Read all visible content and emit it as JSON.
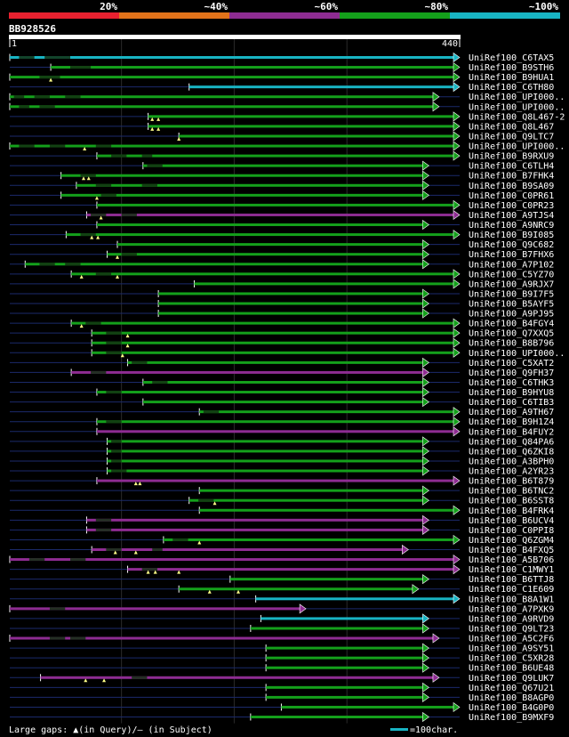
{
  "chart_data": {
    "type": "alignment-overview",
    "query_id": "BB928526",
    "query_length": 440,
    "ruler": {
      "start_label": "1",
      "end_label": "440"
    },
    "identity_legend": [
      {
        "label": "20%",
        "color": "#e8212f"
      },
      {
        "label": "~40%",
        "color": "#e2731a"
      },
      {
        "label": "~60%",
        "color": "#8e2c92"
      },
      {
        "label": "~80%",
        "color": "#14a01b"
      },
      {
        "label": "~100%",
        "color": "#18b4c3"
      }
    ],
    "gridlines_at": [
      110,
      220,
      330
    ],
    "hits": [
      {
        "name": "UniRef100_C6TAX5",
        "start": 1,
        "end": 440,
        "color": "#18b4c3",
        "gaps": [
          [
            10,
            25
          ],
          [
            35,
            60
          ]
        ],
        "marks": []
      },
      {
        "name": "UniRef100_B9STH6",
        "start": 41,
        "end": 440,
        "color": "#14a01b",
        "gaps": [
          [
            60,
            80
          ]
        ],
        "marks": []
      },
      {
        "name": "UniRef100_B9HUA1",
        "start": 1,
        "end": 440,
        "color": "#14a01b",
        "gaps": [
          [
            30,
            50
          ]
        ],
        "marks": [
          41
        ]
      },
      {
        "name": "UniRef100_C6TH80",
        "start": 176,
        "end": 440,
        "color": "#18b4c3",
        "gaps": [],
        "marks": []
      },
      {
        "name": "UniRef100_UPI000..",
        "start": 1,
        "end": 420,
        "color": "#14a01b",
        "gaps": [
          [
            5,
            15
          ],
          [
            25,
            40
          ],
          [
            55,
            70
          ]
        ],
        "marks": []
      },
      {
        "name": "UniRef100_UPI000..",
        "start": 1,
        "end": 420,
        "color": "#14a01b",
        "gaps": [
          [
            10,
            20
          ],
          [
            30,
            45
          ]
        ],
        "marks": []
      },
      {
        "name": "UniRef100_Q8L467-2",
        "start": 136,
        "end": 440,
        "color": "#14a01b",
        "gaps": [],
        "marks": [
          140,
          146
        ]
      },
      {
        "name": "UniRef100_Q8L467",
        "start": 136,
        "end": 440,
        "color": "#14a01b",
        "gaps": [],
        "marks": [
          140,
          146
        ]
      },
      {
        "name": "UniRef100_Q9LTC7",
        "start": 166,
        "end": 440,
        "color": "#14a01b",
        "gaps": [],
        "marks": [
          166
        ]
      },
      {
        "name": "UniRef100_UPI000..",
        "start": 1,
        "end": 440,
        "color": "#14a01b",
        "gaps": [
          [
            10,
            25
          ],
          [
            40,
            55
          ],
          [
            85,
            100
          ]
        ],
        "marks": [
          74
        ]
      },
      {
        "name": "UniRef100_B9RXU9",
        "start": 86,
        "end": 440,
        "color": "#14a01b",
        "gaps": [
          [
            100,
            115
          ],
          [
            130,
            140
          ]
        ],
        "marks": []
      },
      {
        "name": "UniRef100_C6TLH4",
        "start": 131,
        "end": 410,
        "color": "#14a01b",
        "gaps": [
          [
            135,
            150
          ]
        ],
        "marks": []
      },
      {
        "name": "UniRef100_B7FHK4",
        "start": 51,
        "end": 410,
        "color": "#14a01b",
        "gaps": [
          [
            70,
            85
          ]
        ],
        "marks": [
          73,
          78
        ]
      },
      {
        "name": "UniRef100_B9SA09",
        "start": 66,
        "end": 410,
        "color": "#14a01b",
        "gaps": [
          [
            85,
            100
          ],
          [
            130,
            145
          ]
        ],
        "marks": []
      },
      {
        "name": "UniRef100_C0PR61",
        "start": 51,
        "end": 410,
        "color": "#14a01b",
        "gaps": [
          [
            90,
            105
          ]
        ],
        "marks": [
          86
        ]
      },
      {
        "name": "UniRef100_C0PR23",
        "start": 86,
        "end": 440,
        "color": "#14a01b",
        "gaps": [],
        "marks": []
      },
      {
        "name": "UniRef100_A9TJS4",
        "start": 76,
        "end": 440,
        "color": "#8e2c92",
        "gaps": [
          [
            80,
            95
          ],
          [
            110,
            125
          ]
        ],
        "marks": [
          90
        ]
      },
      {
        "name": "UniRef100_A9NRC9",
        "start": 86,
        "end": 410,
        "color": "#14a01b",
        "gaps": [],
        "marks": []
      },
      {
        "name": "UniRef100_B9I085",
        "start": 56,
        "end": 440,
        "color": "#14a01b",
        "gaps": [
          [
            70,
            85
          ]
        ],
        "marks": [
          81,
          87
        ]
      },
      {
        "name": "UniRef100_Q9C682",
        "start": 106,
        "end": 410,
        "color": "#14a01b",
        "gaps": [],
        "marks": []
      },
      {
        "name": "UniRef100_B7FHX6",
        "start": 96,
        "end": 410,
        "color": "#14a01b",
        "gaps": [
          [
            110,
            125
          ]
        ],
        "marks": [
          106
        ]
      },
      {
        "name": "UniRef100_A7P102",
        "start": 16,
        "end": 410,
        "color": "#14a01b",
        "gaps": [
          [
            30,
            45
          ],
          [
            55,
            70
          ]
        ],
        "marks": []
      },
      {
        "name": "UniRef100_C5YZ70",
        "start": 61,
        "end": 440,
        "color": "#14a01b",
        "gaps": [
          [
            85,
            100
          ]
        ],
        "marks": [
          71,
          106
        ]
      },
      {
        "name": "UniRef100_A9RJX7",
        "start": 181,
        "end": 440,
        "color": "#14a01b",
        "gaps": [],
        "marks": []
      },
      {
        "name": "UniRef100_B9I7F5",
        "start": 146,
        "end": 410,
        "color": "#14a01b",
        "gaps": [],
        "marks": []
      },
      {
        "name": "UniRef100_B5AYF5",
        "start": 146,
        "end": 410,
        "color": "#14a01b",
        "gaps": [],
        "marks": []
      },
      {
        "name": "UniRef100_A9PJ95",
        "start": 146,
        "end": 410,
        "color": "#14a01b",
        "gaps": [],
        "marks": []
      },
      {
        "name": "UniRef100_B4FGY4",
        "start": 61,
        "end": 440,
        "color": "#14a01b",
        "gaps": [
          [
            75,
            90
          ]
        ],
        "marks": [
          71
        ]
      },
      {
        "name": "UniRef100_Q7XXQ5",
        "start": 81,
        "end": 440,
        "color": "#14a01b",
        "gaps": [
          [
            95,
            110
          ]
        ],
        "marks": [
          116
        ]
      },
      {
        "name": "UniRef100_B8B796",
        "start": 81,
        "end": 440,
        "color": "#14a01b",
        "gaps": [
          [
            95,
            110
          ]
        ],
        "marks": [
          116
        ]
      },
      {
        "name": "UniRef100_UPI000..",
        "start": 81,
        "end": 440,
        "color": "#14a01b",
        "gaps": [
          [
            95,
            110
          ]
        ],
        "marks": [
          111
        ]
      },
      {
        "name": "UniRef100_C5XAT2",
        "start": 116,
        "end": 410,
        "color": "#14a01b",
        "gaps": [
          [
            120,
            135
          ]
        ],
        "marks": []
      },
      {
        "name": "UniRef100_Q9FH37",
        "start": 61,
        "end": 410,
        "color": "#8e2c92",
        "gaps": [
          [
            80,
            95
          ]
        ],
        "marks": []
      },
      {
        "name": "UniRef100_C6THK3",
        "start": 131,
        "end": 410,
        "color": "#14a01b",
        "gaps": [
          [
            140,
            155
          ]
        ],
        "marks": []
      },
      {
        "name": "UniRef100_B9HYU8",
        "start": 86,
        "end": 410,
        "color": "#14a01b",
        "gaps": [
          [
            95,
            110
          ]
        ],
        "marks": []
      },
      {
        "name": "UniRef100_C6TIB3",
        "start": 131,
        "end": 410,
        "color": "#14a01b",
        "gaps": [],
        "marks": []
      },
      {
        "name": "UniRef100_A9TH67",
        "start": 186,
        "end": 440,
        "color": "#14a01b",
        "gaps": [
          [
            190,
            205
          ]
        ],
        "marks": []
      },
      {
        "name": "UniRef100_B9H1Z4",
        "start": 86,
        "end": 440,
        "color": "#14a01b",
        "gaps": [
          [
            95,
            110
          ]
        ],
        "marks": []
      },
      {
        "name": "UniRef100_B4FUY2",
        "start": 86,
        "end": 440,
        "color": "#8e2c92",
        "gaps": [],
        "marks": []
      },
      {
        "name": "UniRef100_Q84PA6",
        "start": 96,
        "end": 410,
        "color": "#14a01b",
        "gaps": [
          [
            100,
            110
          ]
        ],
        "marks": []
      },
      {
        "name": "UniRef100_Q6ZKI8",
        "start": 96,
        "end": 410,
        "color": "#14a01b",
        "gaps": [
          [
            100,
            110
          ]
        ],
        "marks": []
      },
      {
        "name": "UniRef100_A3BPH0",
        "start": 96,
        "end": 410,
        "color": "#14a01b",
        "gaps": [
          [
            100,
            110
          ]
        ],
        "marks": []
      },
      {
        "name": "UniRef100_A2YR23",
        "start": 96,
        "end": 410,
        "color": "#14a01b",
        "gaps": [
          [
            100,
            115
          ]
        ],
        "marks": []
      },
      {
        "name": "UniRef100_B6T879",
        "start": 86,
        "end": 440,
        "color": "#8e2c92",
        "gaps": [],
        "marks": [
          124,
          128
        ]
      },
      {
        "name": "UniRef100_B6TNC2",
        "start": 186,
        "end": 410,
        "color": "#14a01b",
        "gaps": [],
        "marks": []
      },
      {
        "name": "UniRef100_B6SST8",
        "start": 176,
        "end": 410,
        "color": "#14a01b",
        "gaps": [
          [
            185,
            200
          ]
        ],
        "marks": [
          201
        ]
      },
      {
        "name": "UniRef100_B4FRK4",
        "start": 186,
        "end": 440,
        "color": "#14a01b",
        "gaps": [],
        "marks": []
      },
      {
        "name": "UniRef100_B6UCV4",
        "start": 76,
        "end": 410,
        "color": "#8e2c92",
        "gaps": [
          [
            85,
            100
          ]
        ],
        "marks": []
      },
      {
        "name": "UniRef100_C0PPI8",
        "start": 76,
        "end": 410,
        "color": "#8e2c92",
        "gaps": [
          [
            85,
            100
          ]
        ],
        "marks": []
      },
      {
        "name": "UniRef100_Q6ZGM4",
        "start": 151,
        "end": 440,
        "color": "#14a01b",
        "gaps": [
          [
            160,
            175
          ]
        ],
        "marks": [
          186
        ]
      },
      {
        "name": "UniRef100_B4FXQ5",
        "start": 81,
        "end": 390,
        "color": "#8e2c92",
        "gaps": [
          [
            95,
            110
          ],
          [
            140,
            150
          ]
        ],
        "marks": [
          104,
          124
        ]
      },
      {
        "name": "UniRef100_A5B706",
        "start": 1,
        "end": 440,
        "color": "#8e2c92",
        "gaps": [
          [
            20,
            35
          ],
          [
            60,
            75
          ]
        ],
        "marks": []
      },
      {
        "name": "UniRef100_C1MWY1",
        "start": 116,
        "end": 440,
        "color": "#8e2c92",
        "gaps": [
          [
            130,
            145
          ]
        ],
        "marks": [
          136,
          143,
          166
        ]
      },
      {
        "name": "UniRef100_B6TTJ8",
        "start": 216,
        "end": 410,
        "color": "#14a01b",
        "gaps": [],
        "marks": []
      },
      {
        "name": "UniRef100_C1E609",
        "start": 166,
        "end": 400,
        "color": "#14a01b",
        "gaps": [],
        "marks": [
          196,
          224
        ]
      },
      {
        "name": "UniRef100_B8A1W1",
        "start": 241,
        "end": 440,
        "color": "#18b4c3",
        "gaps": [],
        "marks": []
      },
      {
        "name": "UniRef100_A7PXK9",
        "start": 1,
        "end": 290,
        "color": "#8e2c92",
        "gaps": [
          [
            40,
            55
          ]
        ],
        "marks": []
      },
      {
        "name": "UniRef100_A9RVD9",
        "start": 246,
        "end": 410,
        "color": "#18b4c3",
        "gaps": [],
        "marks": []
      },
      {
        "name": "UniRef100_Q9LT23",
        "start": 236,
        "end": 410,
        "color": "#14a01b",
        "gaps": [],
        "marks": []
      },
      {
        "name": "UniRef100_A5C2F6",
        "start": 1,
        "end": 420,
        "color": "#8e2c92",
        "gaps": [
          [
            40,
            55
          ],
          [
            60,
            75
          ]
        ],
        "marks": []
      },
      {
        "name": "UniRef100_A9SY51",
        "start": 251,
        "end": 410,
        "color": "#14a01b",
        "gaps": [],
        "marks": []
      },
      {
        "name": "UniRef100_C5XR28",
        "start": 251,
        "end": 410,
        "color": "#14a01b",
        "gaps": [],
        "marks": []
      },
      {
        "name": "UniRef100_B6UE48",
        "start": 251,
        "end": 410,
        "color": "#14a01b",
        "gaps": [],
        "marks": []
      },
      {
        "name": "UniRef100_Q9LUK7",
        "start": 31,
        "end": 420,
        "color": "#8e2c92",
        "gaps": [
          [
            120,
            135
          ]
        ],
        "marks": [
          75,
          93
        ]
      },
      {
        "name": "UniRef100_Q67U21",
        "start": 251,
        "end": 410,
        "color": "#14a01b",
        "gaps": [],
        "marks": []
      },
      {
        "name": "UniRef100_B8AGP0",
        "start": 251,
        "end": 410,
        "color": "#14a01b",
        "gaps": [],
        "marks": []
      },
      {
        "name": "UniRef100_B4G0P0",
        "start": 266,
        "end": 440,
        "color": "#14a01b",
        "gaps": [],
        "marks": []
      },
      {
        "name": "UniRef100_B9MXF9",
        "start": 236,
        "end": 410,
        "color": "#14a01b",
        "gaps": [],
        "marks": []
      }
    ]
  },
  "footer": {
    "gaps_text": "Large gaps: ▲(in Query)/— (in Subject)",
    "scale_label": "=100char.",
    "scale_chars": 100,
    "scale_color": "#18b4c3"
  }
}
